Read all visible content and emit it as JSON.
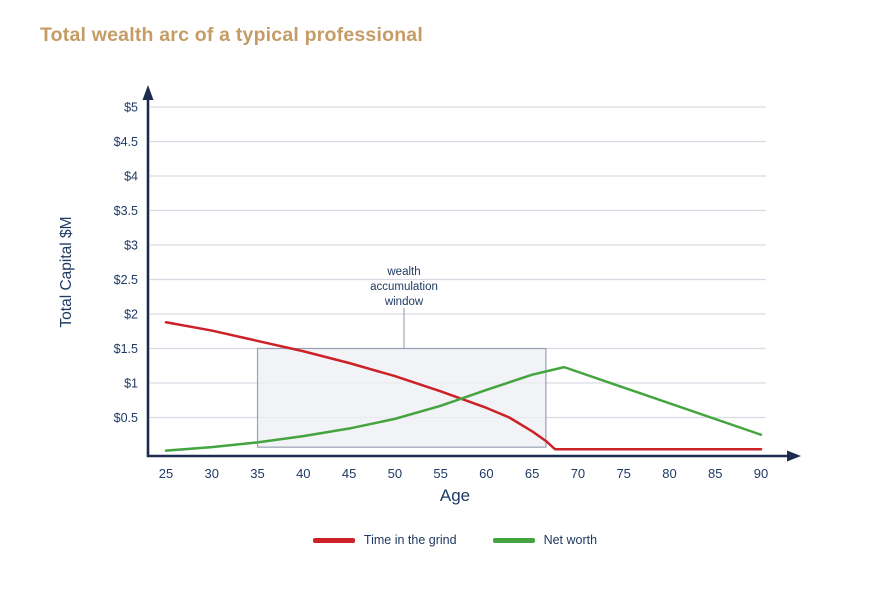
{
  "chart_data": {
    "type": "line",
    "title": "Total wealth arc of a typical professional",
    "xlabel": "Age",
    "ylabel": "Total Capital $M",
    "x_ticks": [
      25,
      30,
      35,
      40,
      45,
      50,
      55,
      60,
      65,
      70,
      75,
      80,
      85,
      90
    ],
    "y_ticks": [
      0.5,
      1,
      1.5,
      2,
      2.5,
      3,
      3.5,
      4,
      4.5,
      5
    ],
    "y_tick_labels": [
      "$0.5",
      "$1",
      "$1.5",
      "$2",
      "$2.5",
      "$3",
      "$3.5",
      "$4",
      "$4.5",
      "$5"
    ],
    "xlim": [
      25,
      90
    ],
    "ylim": [
      0,
      5
    ],
    "grid": "horizontal",
    "legend_position": "bottom-center",
    "series": [
      {
        "name": "Time in the grind",
        "color": "#cd2128",
        "points": [
          [
            25,
            1.88
          ],
          [
            30,
            1.76
          ],
          [
            35,
            1.61
          ],
          [
            40,
            1.46
          ],
          [
            45,
            1.29
          ],
          [
            50,
            1.1
          ],
          [
            55,
            0.88
          ],
          [
            60,
            0.64
          ],
          [
            62.5,
            0.5
          ],
          [
            65,
            0.3
          ],
          [
            66.5,
            0.16
          ],
          [
            67.5,
            0.04
          ],
          [
            90,
            0.04
          ]
        ]
      },
      {
        "name": "Net worth",
        "color": "#44a43f",
        "points": [
          [
            25,
            0.02
          ],
          [
            30,
            0.07
          ],
          [
            35,
            0.14
          ],
          [
            40,
            0.23
          ],
          [
            45,
            0.34
          ],
          [
            50,
            0.48
          ],
          [
            55,
            0.67
          ],
          [
            60,
            0.9
          ],
          [
            65,
            1.12
          ],
          [
            68.5,
            1.23
          ],
          [
            90,
            0.25
          ]
        ]
      }
    ],
    "annotation": {
      "lines": [
        "wealth",
        "accumulation",
        "window"
      ],
      "label_age": 51,
      "box": {
        "x_from": 35,
        "x_to": 66.5,
        "y_from": 0.07,
        "y_to": 1.5
      },
      "box_fill": "#eef0f4",
      "box_border": "#98a1b3"
    },
    "colors": {
      "title": "#c59c66",
      "axis": "#1d2c4e",
      "grid": "#d9dbe4",
      "text": "#1f3a63"
    }
  }
}
